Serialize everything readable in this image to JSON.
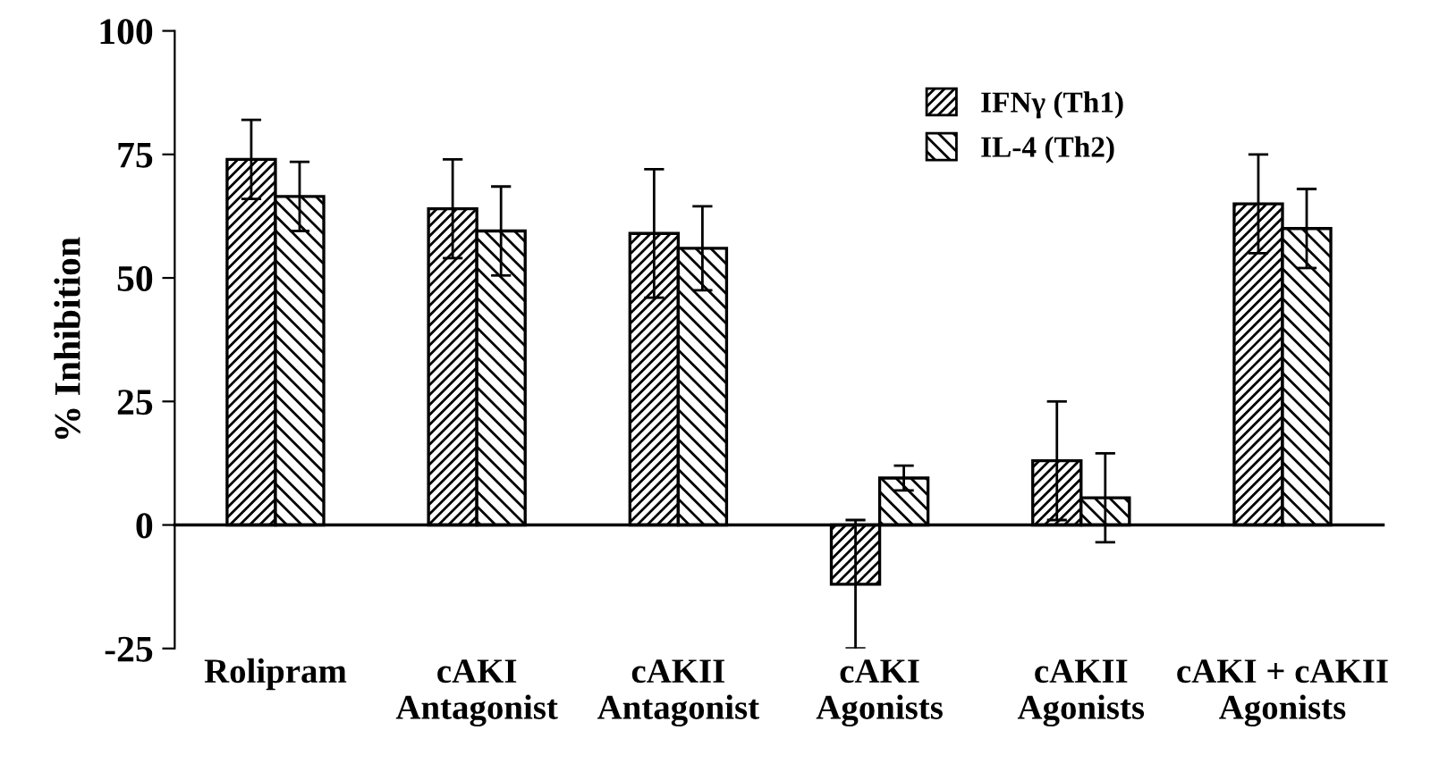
{
  "chart_data": {
    "type": "bar",
    "ylabel": "% Inhibition",
    "categories": [
      "Rolipram",
      "cAKI\nAntagonist",
      "cAKII\nAntagonist",
      "cAKI\nAgonists",
      "cAKII\nAgonists",
      "cAKI + cAKII\nAgonists"
    ],
    "series": [
      {
        "name": "IFNγ (Th1)",
        "color": "#000000",
        "values": [
          74,
          64,
          59,
          -12,
          13,
          65
        ],
        "errors": [
          8,
          10,
          13,
          13,
          12,
          10
        ]
      },
      {
        "name": "IL-4 (Th2)",
        "color": "#000000",
        "values": [
          66.5,
          59.5,
          56,
          9.5,
          5.5,
          60
        ],
        "errors": [
          7,
          9,
          8.5,
          2.5,
          9,
          8
        ]
      }
    ],
    "ylim": [
      -25,
      100
    ],
    "yticks": [
      -25,
      0,
      25,
      50,
      75,
      100
    ],
    "legend": "top right"
  }
}
